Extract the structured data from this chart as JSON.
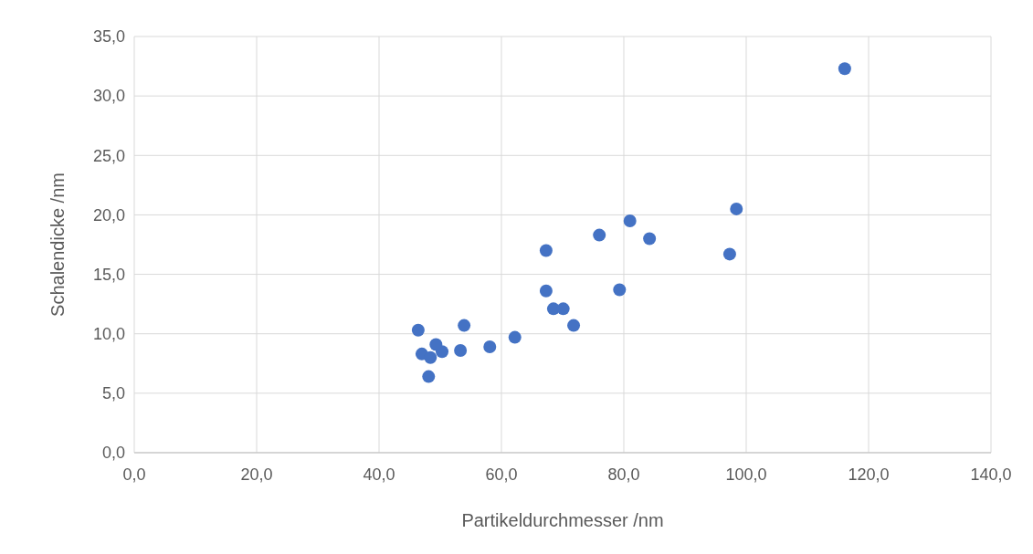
{
  "chart_data": {
    "type": "scatter",
    "xlabel": "Partikeldurchmesser /nm",
    "ylabel": "Schalendicke /nm",
    "x": [
      116.1,
      98.4,
      97.3,
      81.0,
      84.2,
      76.0,
      79.3,
      67.3,
      67.3,
      68.5,
      70.1,
      71.8,
      62.2,
      58.1,
      53.9,
      53.3,
      50.3,
      49.3,
      46.4,
      47.0,
      48.4,
      48.1
    ],
    "series": [
      {
        "color": "#4472c4",
        "values": [
          32.3,
          20.5,
          16.7,
          19.5,
          18.0,
          18.3,
          13.7,
          17.0,
          13.6,
          12.1,
          12.1,
          10.7,
          9.7,
          8.9,
          10.7,
          8.6,
          8.5,
          9.1,
          10.3,
          8.3,
          8.0,
          6.4
        ]
      }
    ],
    "xlim": [
      0,
      140
    ],
    "ylim": [
      0,
      35
    ],
    "xticks": [
      {
        "value": 0,
        "label": "0,0"
      },
      {
        "value": 20,
        "label": "20,0"
      },
      {
        "value": 40,
        "label": "40,0"
      },
      {
        "value": 60,
        "label": "60,0"
      },
      {
        "value": 80,
        "label": "80,0"
      },
      {
        "value": 100,
        "label": "100,0"
      },
      {
        "value": 120,
        "label": "120,0"
      },
      {
        "value": 140,
        "label": "140,0"
      }
    ],
    "yticks": [
      {
        "value": 0,
        "label": "0,0"
      },
      {
        "value": 5,
        "label": "5,0"
      },
      {
        "value": 10,
        "label": "10,0"
      },
      {
        "value": 15,
        "label": "15,0"
      },
      {
        "value": 20,
        "label": "20,0"
      },
      {
        "value": 25,
        "label": "25,0"
      },
      {
        "value": 30,
        "label": "30,0"
      },
      {
        "value": 35,
        "label": "35,0"
      }
    ],
    "grid": true,
    "marker": "circle"
  }
}
